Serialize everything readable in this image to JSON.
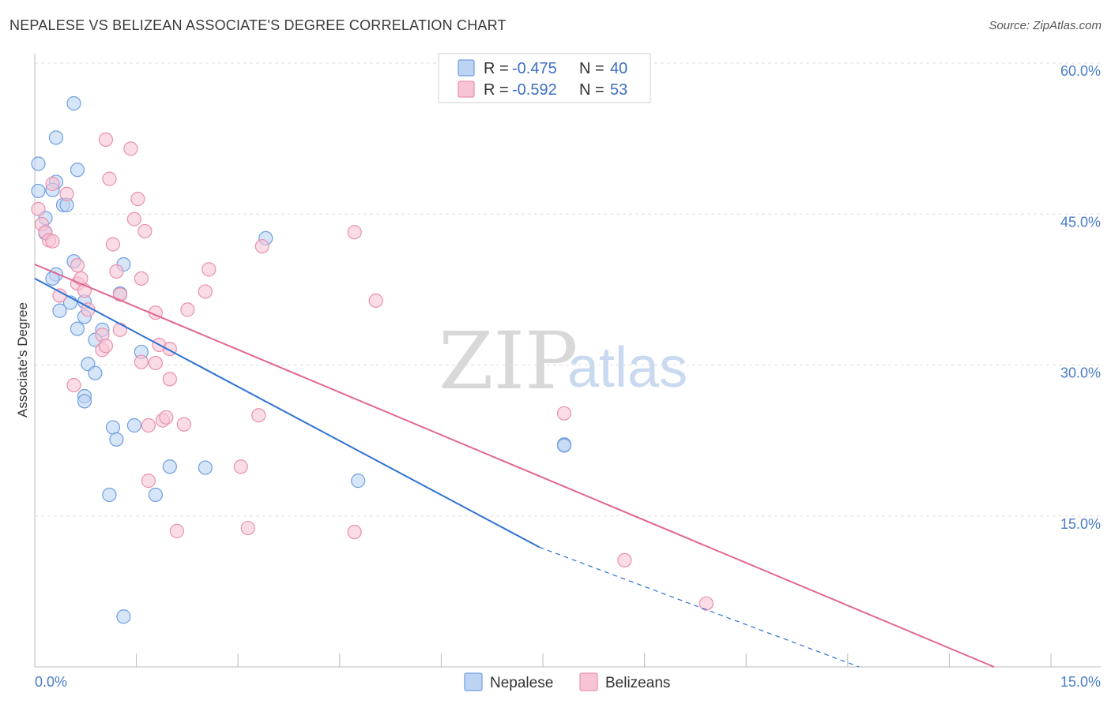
{
  "title": "NEPALESE VS BELIZEAN ASSOCIATE'S DEGREE CORRELATION CHART",
  "source": "Source: ZipAtlas.com",
  "watermark": {
    "zip": "ZIP",
    "atlas": "atlas"
  },
  "colors": {
    "nepalese": "#6f9fe0",
    "nepalese_fill": "#bcd3f3",
    "nepalese_line": "#2e72d2",
    "belizeans": "#e990ae",
    "belizeans_fill": "#f6c4d5",
    "belizeans_line": "#e26690",
    "tick_label": "#4a7cc9",
    "grid": "#dddddd"
  },
  "legend": {
    "row1": {
      "r_label": "R =",
      "r_value": "-0.475",
      "n_label": "N =",
      "n_value": "40"
    },
    "row2": {
      "r_label": "R =",
      "r_value": "-0.592",
      "n_label": "N =",
      "n_value": "53"
    }
  },
  "bottom_legend": {
    "nepalese": "Nepalese",
    "belizeans": "Belizeans"
  },
  "chart_data": {
    "type": "scatter",
    "title": "NEPALESE VS BELIZEAN ASSOCIATE'S DEGREE CORRELATION CHART",
    "xlabel": "",
    "ylabel": "Associate's Degree",
    "xlim": [
      0,
      15
    ],
    "ylim": [
      0,
      60
    ],
    "x_tick_labels": [
      "0.0%",
      "15.0%"
    ],
    "y_ticks": [
      {
        "value": 15,
        "label": "15.0%"
      },
      {
        "value": 30,
        "label": "30.0%"
      },
      {
        "value": 45,
        "label": "45.0%"
      },
      {
        "value": 60,
        "label": "60.0%"
      }
    ],
    "grid": true,
    "series": [
      {
        "name": "Nepalese",
        "R": -0.475,
        "N": 40,
        "trend": {
          "x0": 0,
          "y0": 38.6,
          "x1": 7.1,
          "y1": 11.9,
          "dash_x1": 11.6,
          "dash_y1": 0
        },
        "points": [
          [
            0.55,
            56.0
          ],
          [
            0.3,
            52.6
          ],
          [
            0.05,
            50.0
          ],
          [
            0.6,
            49.4
          ],
          [
            0.3,
            48.2
          ],
          [
            0.25,
            47.4
          ],
          [
            0.05,
            47.3
          ],
          [
            0.4,
            45.9
          ],
          [
            0.45,
            45.9
          ],
          [
            0.15,
            44.6
          ],
          [
            0.15,
            43.1
          ],
          [
            3.25,
            42.6
          ],
          [
            0.55,
            40.3
          ],
          [
            1.25,
            40.0
          ],
          [
            0.3,
            39.0
          ],
          [
            0.25,
            38.6
          ],
          [
            1.2,
            37.1
          ],
          [
            0.7,
            36.3
          ],
          [
            0.5,
            36.2
          ],
          [
            0.35,
            35.4
          ],
          [
            0.7,
            34.8
          ],
          [
            0.95,
            33.5
          ],
          [
            0.6,
            33.6
          ],
          [
            0.85,
            32.5
          ],
          [
            1.5,
            31.3
          ],
          [
            0.75,
            30.1
          ],
          [
            0.85,
            29.2
          ],
          [
            0.7,
            26.9
          ],
          [
            0.7,
            26.4
          ],
          [
            1.1,
            23.8
          ],
          [
            1.4,
            24.0
          ],
          [
            1.15,
            22.6
          ],
          [
            7.45,
            22.1
          ],
          [
            7.45,
            22.0
          ],
          [
            1.9,
            19.9
          ],
          [
            2.4,
            19.8
          ],
          [
            4.55,
            18.5
          ],
          [
            1.05,
            17.1
          ],
          [
            1.7,
            17.1
          ],
          [
            1.25,
            5.0
          ]
        ]
      },
      {
        "name": "Belizeans",
        "R": -0.592,
        "N": 53,
        "trend": {
          "x0": 0,
          "y0": 40.0,
          "x1": 13.5,
          "y1": 0
        },
        "points": [
          [
            0.05,
            45.5
          ],
          [
            0.1,
            44.0
          ],
          [
            0.15,
            43.2
          ],
          [
            0.2,
            42.4
          ],
          [
            0.25,
            42.3
          ],
          [
            0.25,
            48.0
          ],
          [
            0.45,
            47.0
          ],
          [
            0.6,
            39.9
          ],
          [
            0.6,
            38.1
          ],
          [
            0.65,
            38.6
          ],
          [
            0.7,
            37.4
          ],
          [
            0.75,
            35.5
          ],
          [
            0.95,
            33.0
          ],
          [
            0.95,
            31.5
          ],
          [
            1.0,
            52.4
          ],
          [
            1.0,
            31.9
          ],
          [
            1.05,
            48.5
          ],
          [
            1.1,
            42.0
          ],
          [
            1.15,
            39.3
          ],
          [
            1.2,
            37.0
          ],
          [
            1.35,
            51.5
          ],
          [
            1.4,
            44.5
          ],
          [
            1.45,
            46.5
          ],
          [
            1.5,
            30.3
          ],
          [
            1.5,
            38.6
          ],
          [
            1.55,
            43.3
          ],
          [
            1.6,
            24.0
          ],
          [
            1.6,
            18.5
          ],
          [
            1.7,
            35.2
          ],
          [
            1.7,
            30.2
          ],
          [
            1.75,
            32.0
          ],
          [
            1.8,
            24.5
          ],
          [
            1.85,
            24.8
          ],
          [
            1.9,
            31.6
          ],
          [
            1.9,
            28.6
          ],
          [
            2.0,
            13.5
          ],
          [
            2.1,
            24.1
          ],
          [
            2.15,
            35.5
          ],
          [
            2.4,
            37.3
          ],
          [
            2.45,
            39.5
          ],
          [
            2.9,
            19.9
          ],
          [
            3.0,
            13.8
          ],
          [
            3.15,
            25.0
          ],
          [
            3.2,
            41.8
          ],
          [
            4.5,
            43.2
          ],
          [
            4.5,
            13.4
          ],
          [
            4.8,
            36.4
          ],
          [
            7.45,
            25.2
          ],
          [
            8.3,
            10.6
          ],
          [
            9.45,
            6.3
          ],
          [
            0.35,
            36.9
          ],
          [
            0.55,
            28.0
          ],
          [
            1.2,
            33.5
          ]
        ]
      }
    ]
  }
}
